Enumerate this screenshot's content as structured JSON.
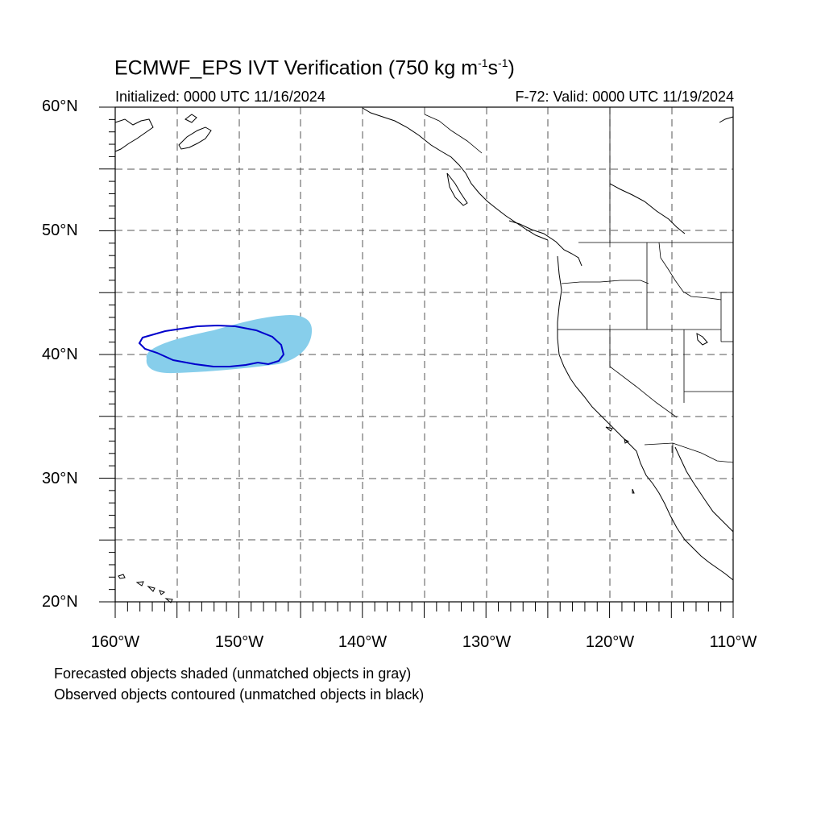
{
  "title": {
    "main": "ECMWF_EPS IVT Verification (750 kg m",
    "sup1": "-1",
    "mid": "s",
    "sup2": "-1",
    "end": ")"
  },
  "initialized": "Initialized: 0000 UTC 11/16/2024",
  "valid": "F-72: Valid: 0000 UTC 11/19/2024",
  "lat_labels": [
    "60°N",
    "50°N",
    "40°N",
    "30°N",
    "20°N"
  ],
  "lon_labels": [
    "160°W",
    "150°W",
    "140°W",
    "130°W",
    "120°W",
    "110°W"
  ],
  "notes": [
    "Forecasted objects shaded (unmatched objects in gray)",
    "Observed objects contoured (unmatched objects in black)"
  ],
  "map": {
    "lat_range": [
      20,
      60
    ],
    "lon_range": [
      -160,
      -110
    ],
    "grid_spacing_deg": 5,
    "forecast_fill_color": "#87ceeb",
    "observed_contour_color": "#0000cc",
    "coast_color": "#000000"
  }
}
